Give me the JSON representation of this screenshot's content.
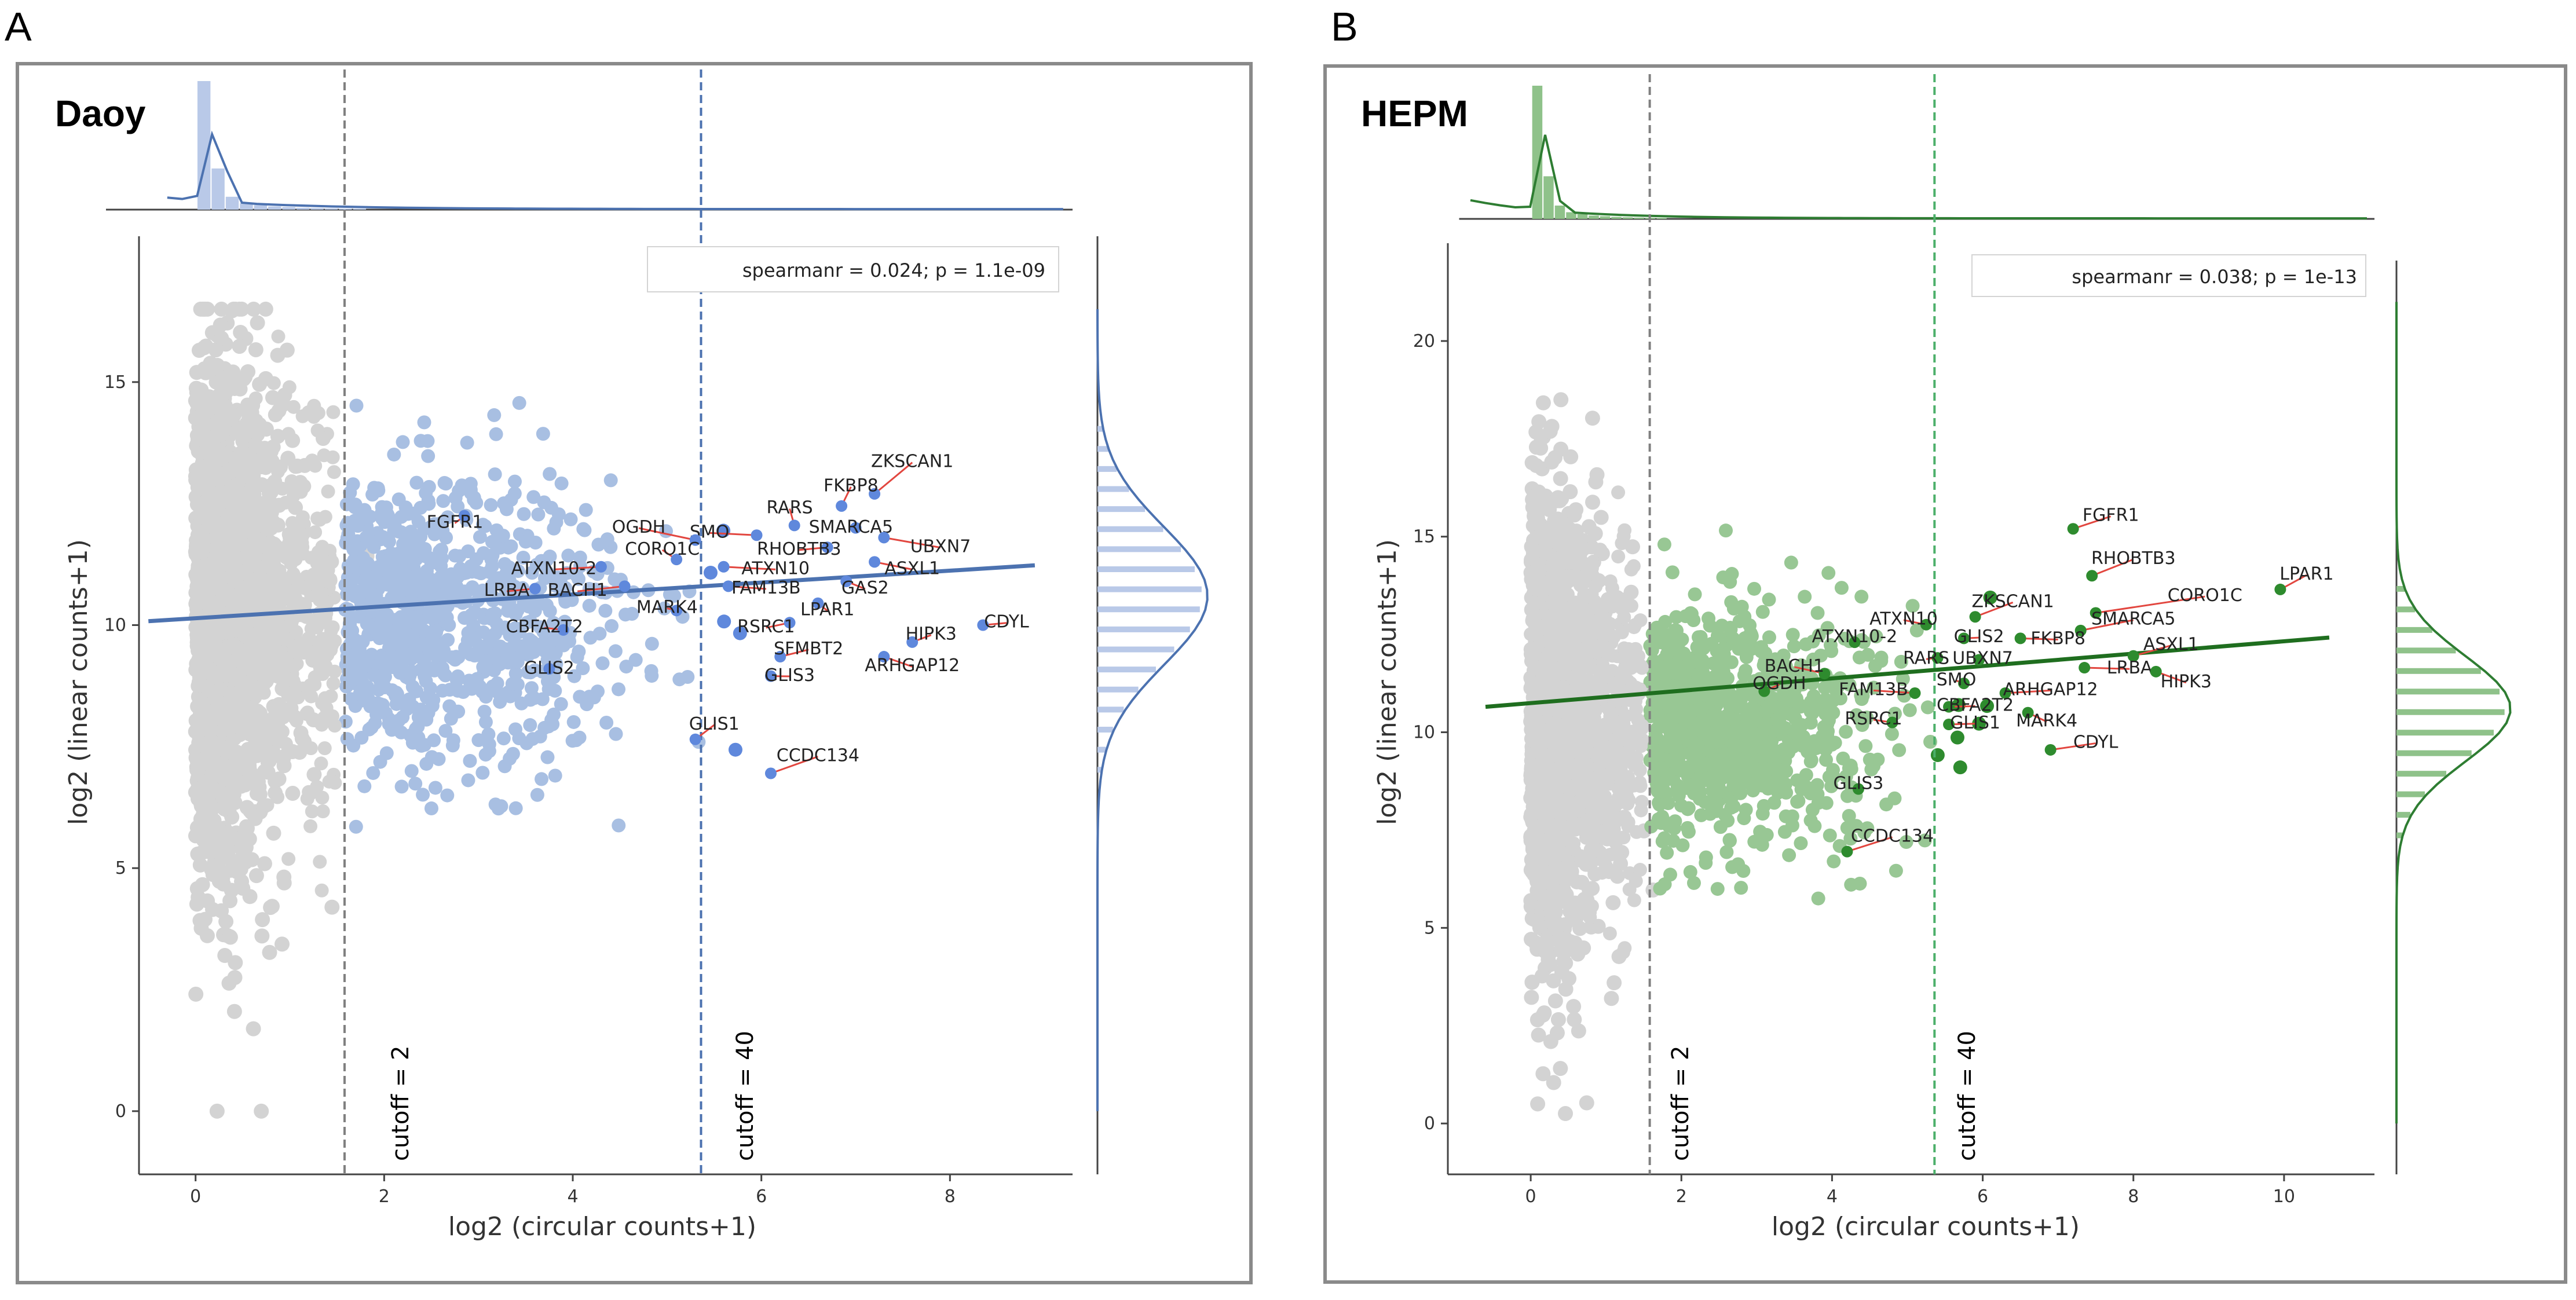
{
  "chart_data": [
    {
      "panel_letter": "A",
      "panel_title": "Daoy",
      "type": "scatter",
      "xlabel": "log2 (circular counts+1)",
      "ylabel": "log2 (linear counts+1)",
      "xlim": [
        -0.6,
        9.3
      ],
      "ylim": [
        -1.3,
        18.0
      ],
      "xticks": [
        0,
        2,
        4,
        6,
        8
      ],
      "yticks": [
        0,
        5,
        10,
        15
      ],
      "annotation": "spearmanr = 0.024; p = 1.1e-09",
      "colors": {
        "low": "#d3d3d3",
        "mid": "#a8bfe2",
        "high": "#5f88dc",
        "line": "#4c72b0",
        "hist_fill": "#b9c9e8",
        "hist_line": "#4c72b0"
      },
      "cutoffs": [
        {
          "label": "cutoff = 2",
          "x": 1.58,
          "color": "#808080"
        },
        {
          "label": "cutoff = 40",
          "x": 5.36,
          "color": "#4c72b0"
        }
      ],
      "regression": {
        "x": [
          -0.5,
          8.9
        ],
        "y": [
          10.08,
          11.23
        ]
      },
      "genes": [
        {
          "name": "ZKSCAN1",
          "x": 7.2,
          "y": 12.7,
          "lx": 7.6,
          "ly": 13.25
        },
        {
          "name": "FKBP8",
          "x": 6.85,
          "y": 12.45,
          "lx": 6.95,
          "ly": 12.75
        },
        {
          "name": "RARS",
          "x": 6.35,
          "y": 12.05,
          "lx": 6.3,
          "ly": 12.3
        },
        {
          "name": "SMARCA5",
          "x": 7.0,
          "y": 12.0,
          "lx": 6.95,
          "ly": 11.9
        },
        {
          "name": "SMO",
          "x": 5.95,
          "y": 11.85,
          "lx": 5.45,
          "ly": 11.8
        },
        {
          "name": "OGDH",
          "x": 5.3,
          "y": 11.75,
          "lx": 4.7,
          "ly": 11.9
        },
        {
          "name": "RHOBTB3",
          "x": 6.7,
          "y": 11.6,
          "lx": 6.4,
          "ly": 11.45
        },
        {
          "name": "UBXN7",
          "x": 7.3,
          "y": 11.8,
          "lx": 7.9,
          "ly": 11.5
        },
        {
          "name": "FGFR1",
          "x": 2.85,
          "y": 12.25,
          "lx": 2.75,
          "ly": 12.0
        },
        {
          "name": "CORO1C",
          "x": 5.1,
          "y": 11.35,
          "lx": 4.95,
          "ly": 11.45
        },
        {
          "name": "ATXN10-2",
          "x": 4.3,
          "y": 11.2,
          "lx": 3.8,
          "ly": 11.05
        },
        {
          "name": "ATXN10",
          "x": 5.6,
          "y": 11.2,
          "lx": 6.15,
          "ly": 11.05
        },
        {
          "name": "ASXL1",
          "x": 7.2,
          "y": 11.3,
          "lx": 7.6,
          "ly": 11.05
        },
        {
          "name": "LRBA",
          "x": 3.6,
          "y": 10.75,
          "lx": 3.3,
          "ly": 10.6
        },
        {
          "name": "BACH1",
          "x": 4.55,
          "y": 10.8,
          "lx": 4.05,
          "ly": 10.6
        },
        {
          "name": "FAM13B",
          "x": 5.65,
          "y": 10.8,
          "lx": 6.05,
          "ly": 10.65
        },
        {
          "name": "GAS2",
          "x": 6.9,
          "y": 10.9,
          "lx": 7.1,
          "ly": 10.65
        },
        {
          "name": "MARK4",
          "x": 5.1,
          "y": 10.3,
          "lx": 5.0,
          "ly": 10.25
        },
        {
          "name": "LPAR1",
          "x": 6.6,
          "y": 10.45,
          "lx": 6.7,
          "ly": 10.2
        },
        {
          "name": "CBFA2T2",
          "x": 3.9,
          "y": 9.9,
          "lx": 3.7,
          "ly": 9.85
        },
        {
          "name": "RSRC1",
          "x": 6.3,
          "y": 10.05,
          "lx": 6.05,
          "ly": 9.85
        },
        {
          "name": "HIPK3",
          "x": 7.6,
          "y": 9.65,
          "lx": 7.8,
          "ly": 9.7
        },
        {
          "name": "CDYL",
          "x": 8.35,
          "y": 10.0,
          "lx": 8.6,
          "ly": 9.95
        },
        {
          "name": "SFMBT2",
          "x": 6.2,
          "y": 9.35,
          "lx": 6.5,
          "ly": 9.4
        },
        {
          "name": "ARHGAP12",
          "x": 7.3,
          "y": 9.35,
          "lx": 7.6,
          "ly": 9.05
        },
        {
          "name": "GLIS2",
          "x": 3.75,
          "y": 9.1,
          "lx": 3.75,
          "ly": 9.0
        },
        {
          "name": "GLIS3",
          "x": 6.1,
          "y": 8.95,
          "lx": 6.3,
          "ly": 8.85
        },
        {
          "name": "GLIS1",
          "x": 5.3,
          "y": 7.65,
          "lx": 5.5,
          "ly": 7.85
        },
        {
          "name": "CCDC134",
          "x": 6.1,
          "y": 6.95,
          "lx": 6.6,
          "ly": 7.2
        }
      ]
    },
    {
      "panel_letter": "B",
      "panel_title": "HEPM",
      "type": "scatter",
      "xlabel": "log2 (circular counts+1)",
      "ylabel": "log2 (linear counts+1)",
      "xlim": [
        -1.1,
        11.2
      ],
      "ylim": [
        -1.3,
        22.5
      ],
      "xticks": [
        0,
        2,
        4,
        6,
        8,
        10
      ],
      "yticks": [
        0,
        5,
        10,
        15,
        20
      ],
      "annotation": "spearmanr = 0.038; p = 1e-13",
      "colors": {
        "low": "#d3d3d3",
        "mid": "#98c794",
        "high": "#2e8b2e",
        "line": "#1f6e1f",
        "hist_fill": "#8fc28a",
        "hist_line": "#2e7d32"
      },
      "cutoffs": [
        {
          "label": "cutoff = 2",
          "x": 1.58,
          "color": "#808080"
        },
        {
          "label": "cutoff = 40",
          "x": 5.36,
          "color": "#4caf6a"
        }
      ],
      "regression": {
        "x": [
          -0.6,
          10.6
        ],
        "y": [
          10.65,
          12.42
        ]
      },
      "genes": [
        {
          "name": "FGFR1",
          "x": 7.2,
          "y": 15.2,
          "lx": 7.7,
          "ly": 15.4
        },
        {
          "name": "RHOBTB3",
          "x": 7.45,
          "y": 14.0,
          "lx": 8.0,
          "ly": 14.3
        },
        {
          "name": "LPAR1",
          "x": 9.95,
          "y": 13.65,
          "lx": 10.3,
          "ly": 13.9
        },
        {
          "name": "CORO1C",
          "x": 7.5,
          "y": 13.05,
          "lx": 8.95,
          "ly": 13.35
        },
        {
          "name": "ZKSCAN1",
          "x": 5.9,
          "y": 12.95,
          "lx": 6.4,
          "ly": 13.2
        },
        {
          "name": "ATXN10",
          "x": 5.25,
          "y": 12.75,
          "lx": 4.95,
          "ly": 12.75
        },
        {
          "name": "SMARCA5",
          "x": 7.3,
          "y": 12.6,
          "lx": 8.0,
          "ly": 12.75
        },
        {
          "name": "ATXN10-2",
          "x": 4.3,
          "y": 12.3,
          "lx": 4.3,
          "ly": 12.3
        },
        {
          "name": "GLIS2",
          "x": 5.75,
          "y": 12.4,
          "lx": 5.95,
          "ly": 12.3
        },
        {
          "name": "FKBP8",
          "x": 6.5,
          "y": 12.4,
          "lx": 7.0,
          "ly": 12.25
        },
        {
          "name": "ASXL1",
          "x": 8.0,
          "y": 11.95,
          "lx": 8.5,
          "ly": 12.1
        },
        {
          "name": "RARS",
          "x": 5.4,
          "y": 11.9,
          "lx": 5.25,
          "ly": 11.75
        },
        {
          "name": "UBXN7",
          "x": 5.95,
          "y": 11.85,
          "lx": 6.0,
          "ly": 11.75
        },
        {
          "name": "BACH1",
          "x": 3.9,
          "y": 11.5,
          "lx": 3.5,
          "ly": 11.55
        },
        {
          "name": "LRBA",
          "x": 7.35,
          "y": 11.65,
          "lx": 7.95,
          "ly": 11.5
        },
        {
          "name": "HIPK3",
          "x": 8.3,
          "y": 11.55,
          "lx": 8.7,
          "ly": 11.15
        },
        {
          "name": "SMO",
          "x": 5.75,
          "y": 11.25,
          "lx": 5.65,
          "ly": 11.2
        },
        {
          "name": "OGDH",
          "x": 3.1,
          "y": 11.05,
          "lx": 3.3,
          "ly": 11.1
        },
        {
          "name": "FAM13B",
          "x": 5.1,
          "y": 11.0,
          "lx": 4.55,
          "ly": 10.95
        },
        {
          "name": "ARHGAP12",
          "x": 6.3,
          "y": 11.0,
          "lx": 6.9,
          "ly": 10.95
        },
        {
          "name": "CBFA2T2",
          "x": 5.55,
          "y": 10.65,
          "lx": 5.9,
          "ly": 10.55
        },
        {
          "name": "RSRC1",
          "x": 4.8,
          "y": 10.25,
          "lx": 4.55,
          "ly": 10.2
        },
        {
          "name": "GLIS1",
          "x": 5.55,
          "y": 10.2,
          "lx": 5.9,
          "ly": 10.1
        },
        {
          "name": "MARK4",
          "x": 6.6,
          "y": 10.5,
          "lx": 6.85,
          "ly": 10.15
        },
        {
          "name": "CDYL",
          "x": 6.9,
          "y": 9.55,
          "lx": 7.5,
          "ly": 9.6
        },
        {
          "name": "GLIS3",
          "x": 4.35,
          "y": 8.55,
          "lx": 4.35,
          "ly": 8.55
        },
        {
          "name": "CCDC134",
          "x": 4.2,
          "y": 6.95,
          "lx": 4.8,
          "ly": 7.2
        }
      ]
    }
  ]
}
